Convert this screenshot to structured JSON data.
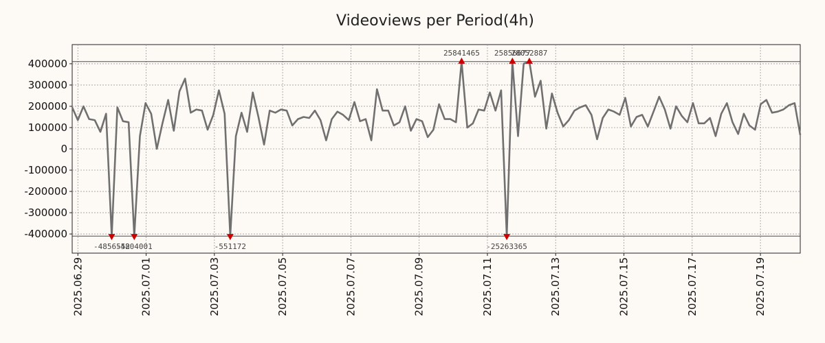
{
  "chart_data": {
    "type": "line",
    "title": "Videoviews per Period(4h)",
    "xlabel": "",
    "ylabel": "",
    "ylim": [
      -490000,
      490000
    ],
    "clip_band": [
      -410000,
      410000
    ],
    "y_ticks": [
      -400000,
      -300000,
      -200000,
      -100000,
      0,
      100000,
      200000,
      300000,
      400000
    ],
    "x_start": "2025.06.28 20:00",
    "x_end": "2025.07.20 04:00",
    "x_tick_labels": [
      "2025.06.29",
      "2025.07.01",
      "2025.07.03",
      "2025.07.05",
      "2025.07.07",
      "2025.07.09",
      "2025.07.11",
      "2025.07.13",
      "2025.07.15",
      "2025.07.17",
      "2025.07.19"
    ],
    "grid": true,
    "line_color": "#707070",
    "marker_color": "#cc0000",
    "series": [
      {
        "name": "",
        "values": [
          195000,
          135000,
          200000,
          140000,
          135000,
          80000,
          165000,
          -410000,
          195000,
          130000,
          125000,
          -410000,
          60000,
          215000,
          165000,
          0,
          120000,
          230000,
          85000,
          270000,
          330000,
          170000,
          185000,
          180000,
          90000,
          160000,
          275000,
          165000,
          -410000,
          60000,
          170000,
          80000,
          265000,
          150000,
          20000,
          180000,
          170000,
          185000,
          180000,
          110000,
          140000,
          150000,
          145000,
          180000,
          135000,
          40000,
          140000,
          175000,
          160000,
          135000,
          220000,
          130000,
          140000,
          40000,
          280000,
          180000,
          180000,
          110000,
          125000,
          200000,
          85000,
          140000,
          130000,
          55000,
          90000,
          210000,
          140000,
          140000,
          125000,
          410000,
          100000,
          120000,
          185000,
          180000,
          265000,
          180000,
          275000,
          -410000,
          410000,
          60000,
          400000,
          410000,
          245000,
          320000,
          95000,
          260000,
          170000,
          105000,
          135000,
          180000,
          195000,
          205000,
          160000,
          45000,
          145000,
          185000,
          175000,
          160000,
          240000,
          105000,
          150000,
          160000,
          105000,
          175000,
          245000,
          185000,
          95000,
          200000,
          155000,
          125000,
          215000,
          120000,
          120000,
          145000,
          60000,
          165000,
          215000,
          125000,
          70000,
          165000,
          110000,
          90000,
          210000,
          230000,
          170000,
          175000,
          185000,
          205000,
          215000,
          65000
        ]
      }
    ],
    "annotations": [
      {
        "index": 7,
        "text": "-4856552",
        "position": "bottom"
      },
      {
        "index": 11,
        "text": "-4804001",
        "position": "bottom"
      },
      {
        "index": 28,
        "text": "-551172",
        "position": "bottom"
      },
      {
        "index": 69,
        "text": "25841465",
        "position": "top"
      },
      {
        "index": 77,
        "text": "-25263365",
        "position": "bottom"
      },
      {
        "index": 78,
        "text": "25856677",
        "position": "top"
      },
      {
        "index": 81,
        "text": "28052887",
        "position": "top"
      }
    ]
  }
}
